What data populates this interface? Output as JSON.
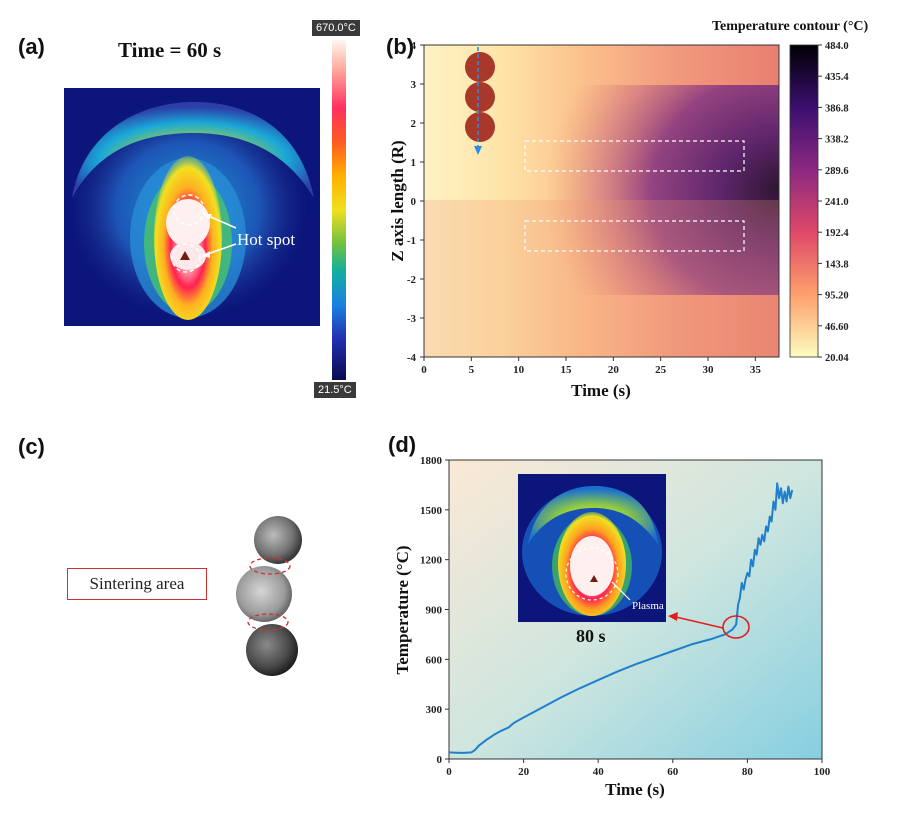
{
  "labels": {
    "a": "(a)",
    "b": "(b)",
    "c": "(c)",
    "d": "(d)"
  },
  "panel_a": {
    "time_label": "Time = 60 s",
    "scale_max": "670.0°C",
    "scale_min": "21.5°C",
    "annotation": "Hot spot"
  },
  "panel_c": {
    "annotation": "Sintering area"
  },
  "chart_data": [
    {
      "type": "heatmap",
      "panel": "b",
      "title": "Temperature contour (°C)",
      "xlabel": "Time (s)",
      "ylabel": "Z axis length (R)",
      "xlim": [
        0,
        37.5
      ],
      "ylim": [
        -4,
        4
      ],
      "xticks": [
        "0",
        "5",
        "10",
        "15",
        "20",
        "25",
        "30",
        "35"
      ],
      "yticks": [
        "4",
        "3",
        "2",
        "1",
        "0",
        "-1",
        "-2",
        "-3",
        "-4"
      ],
      "colorbar_ticks": [
        "484.0",
        "435.4",
        "386.8",
        "338.2",
        "289.6",
        "241.0",
        "192.4",
        "143.8",
        "95.20",
        "46.60",
        "20.04"
      ],
      "colorbar_range": [
        20.04,
        484.0
      ]
    },
    {
      "type": "line",
      "panel": "d",
      "xlabel": "Time (s)",
      "ylabel": "Temperature (°C)",
      "xlim": [
        0,
        100
      ],
      "ylim": [
        0,
        1800
      ],
      "xticks": [
        "0",
        "20",
        "40",
        "60",
        "80",
        "100"
      ],
      "yticks": [
        "0",
        "300",
        "600",
        "900",
        "1200",
        "1500",
        "1800"
      ],
      "inset_time": "80 s",
      "inset_annotation": "Plasma",
      "series": [
        {
          "color": "#1f7fcc",
          "x": [
            0,
            2,
            4,
            6,
            7,
            8,
            10,
            12,
            14,
            16,
            17,
            18,
            20,
            25,
            30,
            35,
            40,
            45,
            50,
            55,
            60,
            65,
            70,
            74,
            76,
            77,
            77.5,
            78,
            78.5,
            79,
            79.5,
            80,
            80.5,
            81,
            81.5,
            82,
            82.5,
            83,
            83.5,
            84,
            84.5,
            85,
            85.5,
            86,
            86.5,
            87,
            87.5,
            88,
            88.5,
            89,
            89.5,
            90,
            90.5,
            91,
            91.5,
            92
          ],
          "y": [
            40,
            38,
            37,
            40,
            55,
            80,
            115,
            145,
            170,
            190,
            210,
            225,
            250,
            310,
            370,
            425,
            475,
            525,
            570,
            610,
            650,
            690,
            720,
            750,
            780,
            810,
            930,
            970,
            1060,
            1020,
            1080,
            1120,
            1100,
            1200,
            1160,
            1260,
            1230,
            1330,
            1290,
            1350,
            1310,
            1400,
            1370,
            1460,
            1430,
            1550,
            1500,
            1660,
            1570,
            1630,
            1540,
            1610,
            1550,
            1640,
            1570,
            1620
          ]
        }
      ]
    }
  ]
}
